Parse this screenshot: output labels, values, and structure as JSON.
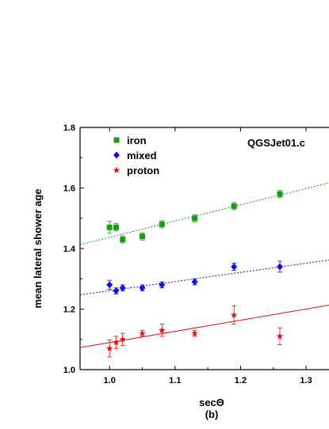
{
  "chart_data": {
    "type": "scatter",
    "annotation": "QGSJet01.c",
    "xlabel": "secΘ",
    "sublabel": "(b)",
    "ylabel": "mean lateral shower age",
    "xlim": [
      0.955,
      1.335
    ],
    "ylim": [
      1.0,
      1.8
    ],
    "xticks": [
      "1.0",
      "1.1",
      "1.2",
      "1.3"
    ],
    "yticks": [
      "1.0",
      "1.2",
      "1.4",
      "1.6",
      "1.8"
    ],
    "legend_position": "top-left",
    "series": [
      {
        "name": "iron",
        "color": "#1a9b1a",
        "marker": "square",
        "fit_style": "dotted",
        "fit": {
          "x0": 0.955,
          "y0": 1.413,
          "x1": 1.335,
          "y1": 1.617
        },
        "points": [
          {
            "x": 1.0,
            "y": 1.47,
            "err": 0.02
          },
          {
            "x": 1.01,
            "y": 1.47,
            "err": 0.012
          },
          {
            "x": 1.02,
            "y": 1.43,
            "err": 0.012
          },
          {
            "x": 1.05,
            "y": 1.44,
            "err": 0.012
          },
          {
            "x": 1.08,
            "y": 1.48,
            "err": 0.012
          },
          {
            "x": 1.13,
            "y": 1.5,
            "err": 0.012
          },
          {
            "x": 1.19,
            "y": 1.54,
            "err": 0.012
          },
          {
            "x": 1.26,
            "y": 1.58,
            "err": 0.012
          }
        ]
      },
      {
        "name": "mixed",
        "color": "#1010e0",
        "marker": "diamond",
        "fit_style": "dotted",
        "fit": {
          "x0": 0.955,
          "y0": 1.247,
          "x1": 1.335,
          "y1": 1.362
        },
        "points": [
          {
            "x": 1.0,
            "y": 1.28,
            "err": 0.015
          },
          {
            "x": 1.01,
            "y": 1.26,
            "err": 0.01
          },
          {
            "x": 1.02,
            "y": 1.27,
            "err": 0.01
          },
          {
            "x": 1.05,
            "y": 1.27,
            "err": 0.01
          },
          {
            "x": 1.08,
            "y": 1.28,
            "err": 0.01
          },
          {
            "x": 1.13,
            "y": 1.29,
            "err": 0.01
          },
          {
            "x": 1.19,
            "y": 1.34,
            "err": 0.012
          },
          {
            "x": 1.26,
            "y": 1.34,
            "err": 0.018
          }
        ]
      },
      {
        "name": "proton",
        "color": "#e01010",
        "marker": "star",
        "fit_style": "solid",
        "fit": {
          "x0": 0.955,
          "y0": 1.073,
          "x1": 1.335,
          "y1": 1.213
        },
        "points": [
          {
            "x": 1.0,
            "y": 1.07,
            "err": 0.028
          },
          {
            "x": 1.01,
            "y": 1.09,
            "err": 0.02
          },
          {
            "x": 1.02,
            "y": 1.1,
            "err": 0.02
          },
          {
            "x": 1.05,
            "y": 1.12,
            "err": 0.01
          },
          {
            "x": 1.08,
            "y": 1.13,
            "err": 0.02
          },
          {
            "x": 1.13,
            "y": 1.12,
            "err": 0.01
          },
          {
            "x": 1.19,
            "y": 1.18,
            "err": 0.03
          },
          {
            "x": 1.26,
            "y": 1.11,
            "err": 0.028
          }
        ]
      }
    ]
  }
}
